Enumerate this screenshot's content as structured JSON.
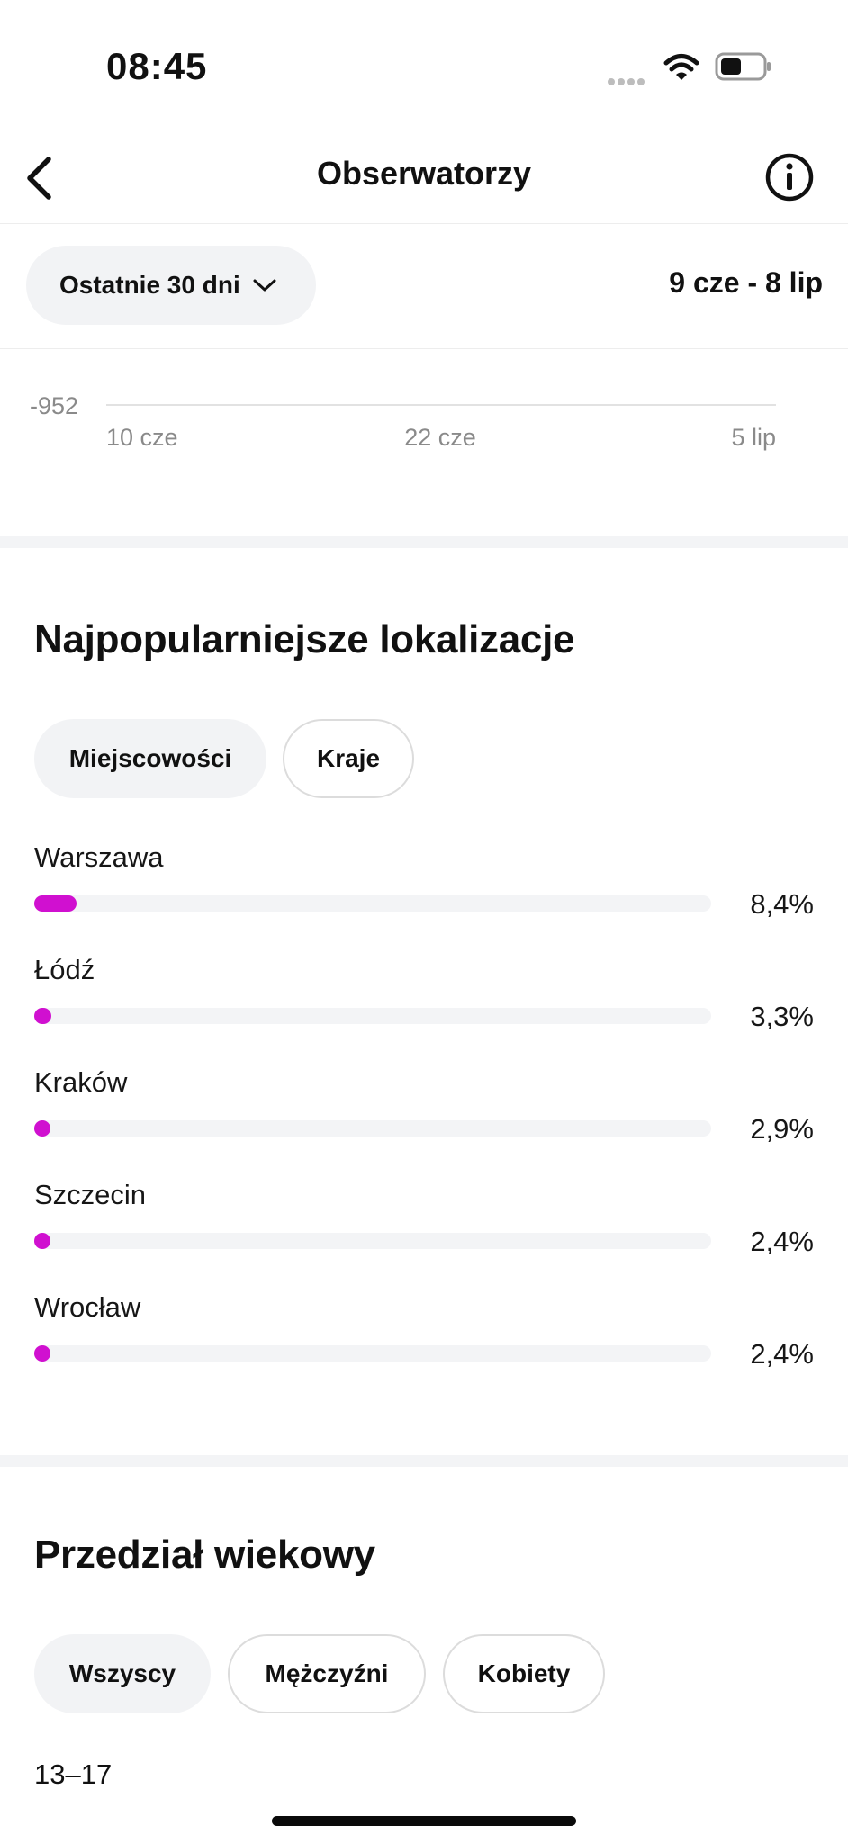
{
  "status_bar": {
    "time": "08:45"
  },
  "header": {
    "title": "Obserwatorzy"
  },
  "period": {
    "selected": "Ostatnie 30 dni",
    "date_range": "9 cze - 8 lip"
  },
  "chart_data": {
    "type": "line",
    "y_tick_labels": [
      "-952"
    ],
    "x_tick_labels": [
      "10 cze",
      "22 cze",
      "5 lip"
    ],
    "series": []
  },
  "locations": {
    "title": "Najpopularniejsze lokalizacje",
    "tabs": [
      {
        "label": "Miejscowości",
        "active": true
      },
      {
        "label": "Kraje",
        "active": false
      }
    ],
    "items": [
      {
        "name": "Warszawa",
        "percent_label": "8,4%",
        "percent": 8.4
      },
      {
        "name": "Łódź",
        "percent_label": "3,3%",
        "percent": 3.3
      },
      {
        "name": "Kraków",
        "percent_label": "2,9%",
        "percent": 2.9
      },
      {
        "name": "Szczecin",
        "percent_label": "2,4%",
        "percent": 2.4
      },
      {
        "name": "Wrocław",
        "percent_label": "2,4%",
        "percent": 2.4
      }
    ],
    "bar_color": "#d010d0"
  },
  "age": {
    "title": "Przedział wiekowy",
    "tabs": [
      {
        "label": "Wszyscy",
        "active": true
      },
      {
        "label": "Mężczyźni",
        "active": false
      },
      {
        "label": "Kobiety",
        "active": false
      }
    ],
    "first_row_label": "13–17"
  }
}
